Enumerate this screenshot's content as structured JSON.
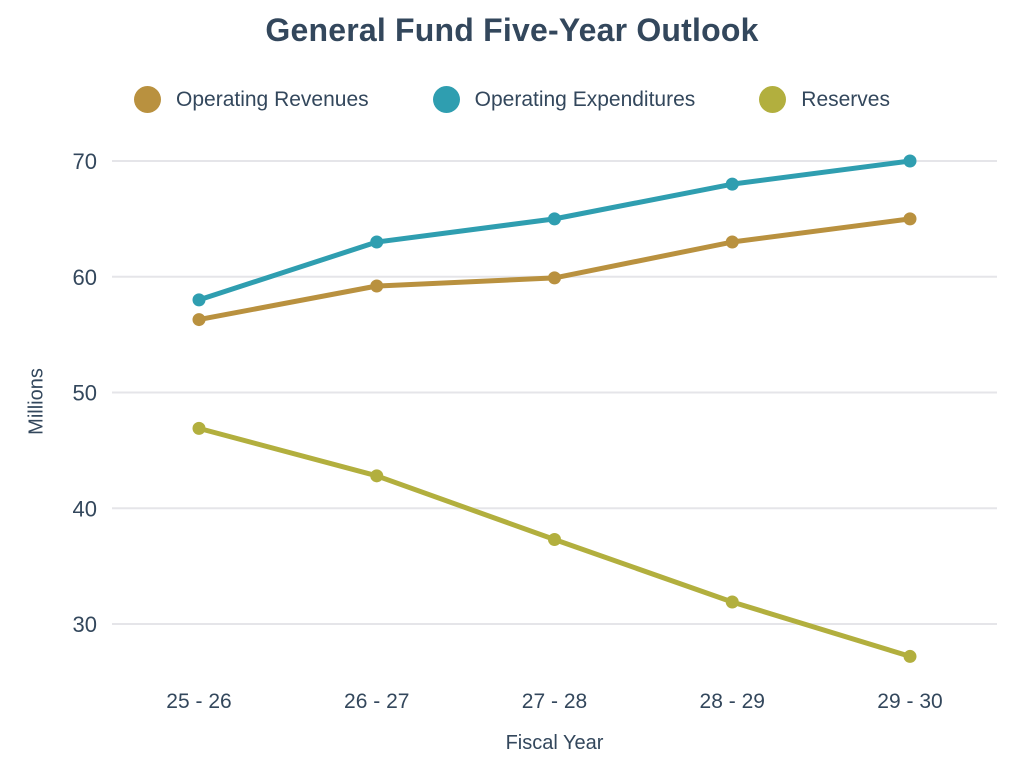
{
  "chart_data": {
    "type": "line",
    "title": "General Fund Five-Year Outlook",
    "xlabel": "Fiscal Year",
    "ylabel": "Millions",
    "categories": [
      "25 - 26",
      "26 - 27",
      "27 - 28",
      "28 - 29",
      "29 - 30"
    ],
    "series": [
      {
        "name": "Operating Revenues",
        "color": "#b9913f",
        "values": [
          56.3,
          59.2,
          59.9,
          63,
          65
        ]
      },
      {
        "name": "Operating Expenditures",
        "color": "#2f9eb0",
        "values": [
          58,
          63,
          65,
          68,
          70
        ]
      },
      {
        "name": "Reserves",
        "color": "#b2af3e",
        "values": [
          46.9,
          42.8,
          37.3,
          31.9,
          27.2
        ]
      }
    ],
    "yticks": [
      30,
      40,
      50,
      60,
      70
    ],
    "ylim": [
      26,
      72
    ],
    "grid": "horizontal-only",
    "legend_position": "top",
    "colors": {
      "text": "#33475c",
      "grid": "#e5e5e9",
      "background": "#ffffff"
    }
  }
}
